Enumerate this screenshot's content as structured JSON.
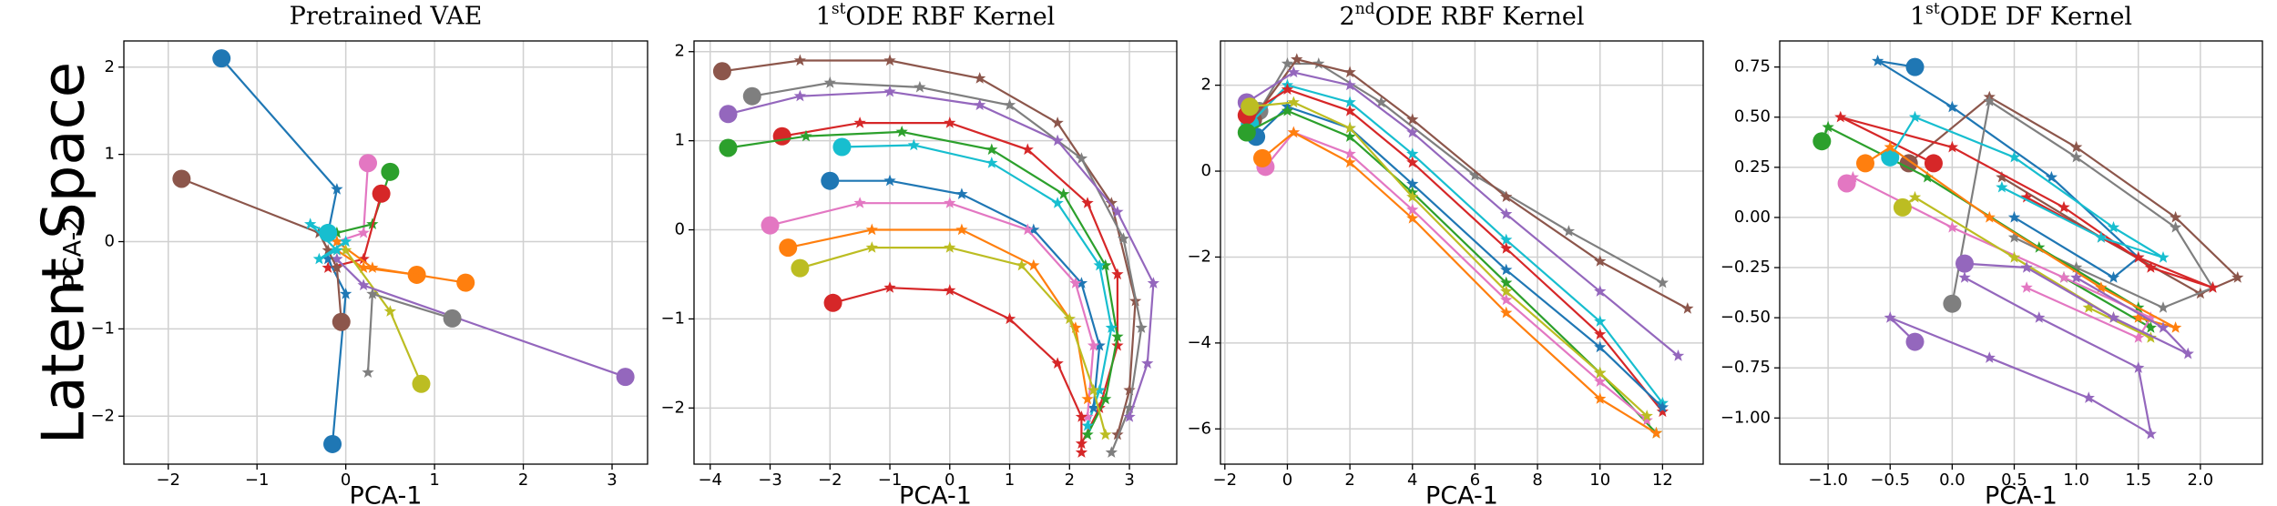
{
  "row_label": "Latent Space",
  "chart_data": [
    {
      "type": "line",
      "title": "Pretrained VAE",
      "xlabel": "PCA-1",
      "ylabel": "PCA-2",
      "grid": true,
      "xlim": [
        -2.5,
        3.4
      ],
      "ylim": [
        -2.55,
        2.3
      ],
      "xticks": [
        {
          "value": -2,
          "label": "−2"
        },
        {
          "value": -1,
          "label": "−1"
        },
        0,
        1,
        2,
        3
      ],
      "yticks": [
        {
          "value": -2,
          "label": "−2"
        },
        {
          "value": -1,
          "label": "−1"
        },
        0,
        1,
        2
      ],
      "series": [
        {
          "color": "#1f77b4",
          "x": [
            -1.4,
            -0.1,
            -0.2
          ],
          "values": [
            2.1,
            0.6,
            0.1
          ]
        },
        {
          "color": "#8c564b",
          "x": [
            -1.85,
            -0.3,
            -0.2
          ],
          "values": [
            0.72,
            0.1,
            -0.1
          ]
        },
        {
          "color": "#e377c2",
          "x": [
            0.25,
            0.2,
            -0.1
          ],
          "values": [
            0.9,
            0.1,
            0
          ]
        },
        {
          "color": "#2ca02c",
          "x": [
            0.5,
            0.3,
            -0.1
          ],
          "values": [
            0.8,
            0.2,
            0.1
          ]
        },
        {
          "color": "#d62728",
          "x": [
            0.4,
            0.2,
            -0.2
          ],
          "values": [
            0.55,
            -0.2,
            -0.3
          ]
        },
        {
          "color": "#ff7f0e",
          "x": [
            0.8,
            0.2,
            -0.1
          ],
          "values": [
            -0.38,
            -0.3,
            -0.1
          ]
        },
        {
          "color": "#ff7f0e",
          "x": [
            1.35,
            0.3,
            -0.1
          ],
          "values": [
            -0.47,
            -0.3,
            0
          ]
        },
        {
          "color": "#bcbd22",
          "x": [
            0.85,
            0.5,
            0
          ],
          "values": [
            -1.63,
            -0.8,
            -0.1
          ]
        },
        {
          "color": "#9467bd",
          "x": [
            3.15,
            0.2,
            -0.1
          ],
          "values": [
            -1.55,
            -0.5,
            -0.2
          ]
        },
        {
          "color": "#1f77b4",
          "x": [
            -0.15,
            0,
            -0.2
          ],
          "values": [
            -2.32,
            -0.6,
            -0.2
          ]
        },
        {
          "color": "#7f7f7f",
          "x": [
            1.2,
            0.3,
            0.25
          ],
          "values": [
            -0.88,
            -0.6,
            -1.5
          ]
        },
        {
          "color": "#8c564b",
          "x": [
            -0.05,
            -0.1,
            -0.3
          ],
          "values": [
            -0.92,
            -0.3,
            0.1
          ]
        },
        {
          "color": "#17becf",
          "x": [
            -0.2,
            -0.4,
            -0.1,
            -0.3,
            0
          ],
          "values": [
            0.1,
            0.2,
            -0.1,
            -0.2,
            0
          ]
        }
      ]
    },
    {
      "type": "line",
      "title": {
        "ordinal": "1",
        "suffix": "st",
        "text": "ODE RBF Kernel"
      },
      "xlabel": "PCA-1",
      "grid": true,
      "xlim": [
        -4.27,
        3.79
      ],
      "ylim": [
        -2.63,
        2.12
      ],
      "xticks": [
        {
          "value": -4,
          "label": "−4"
        },
        {
          "value": -3,
          "label": "−3"
        },
        {
          "value": -2,
          "label": "−2"
        },
        {
          "value": -1,
          "label": "−1"
        },
        0,
        1,
        2,
        3
      ],
      "yticks": [
        {
          "value": -2,
          "label": "−2"
        },
        {
          "value": -1,
          "label": "−1"
        },
        0,
        1,
        2
      ],
      "series": [
        {
          "color": "#8c564b",
          "x": [
            -3.8,
            -2.5,
            -1,
            0.5,
            1.8,
            2.7,
            3.1,
            3.0,
            2.8
          ],
          "values": [
            1.78,
            1.9,
            1.9,
            1.7,
            1.2,
            0.3,
            -0.8,
            -1.8,
            -2.3
          ]
        },
        {
          "color": "#7f7f7f",
          "x": [
            -3.3,
            -2,
            -0.5,
            1,
            2.2,
            2.9,
            3.2,
            3.0,
            2.7
          ],
          "values": [
            1.5,
            1.65,
            1.6,
            1.4,
            0.8,
            -0.1,
            -1.1,
            -2.0,
            -2.5
          ]
        },
        {
          "color": "#9467bd",
          "x": [
            -3.7,
            -2.5,
            -1,
            0.5,
            1.8,
            2.8,
            3.4,
            3.3,
            3.0
          ],
          "values": [
            1.3,
            1.5,
            1.55,
            1.4,
            1.0,
            0.2,
            -0.6,
            -1.5,
            -2.1
          ]
        },
        {
          "color": "#d62728",
          "x": [
            -2.8,
            -1.5,
            0,
            1.3,
            2.3,
            2.8,
            2.8,
            2.5,
            2.2
          ],
          "values": [
            1.05,
            1.2,
            1.2,
            0.9,
            0.3,
            -0.5,
            -1.3,
            -2.0,
            -2.4
          ]
        },
        {
          "color": "#2ca02c",
          "x": [
            -3.7,
            -2.4,
            -0.8,
            0.7,
            1.9,
            2.6,
            2.8,
            2.6,
            2.3
          ],
          "values": [
            0.92,
            1.05,
            1.1,
            0.9,
            0.4,
            -0.4,
            -1.2,
            -1.9,
            -2.3
          ]
        },
        {
          "color": "#17becf",
          "x": [
            -1.8,
            -0.6,
            0.7,
            1.8,
            2.5,
            2.7,
            2.5,
            2.3
          ],
          "values": [
            0.93,
            0.95,
            0.75,
            0.3,
            -0.4,
            -1.1,
            -1.8,
            -2.2
          ]
        },
        {
          "color": "#1f77b4",
          "x": [
            -2,
            -1,
            0.2,
            1.4,
            2.2,
            2.5,
            2.4
          ],
          "values": [
            0.55,
            0.55,
            0.4,
            0.0,
            -0.6,
            -1.3,
            -2.0
          ]
        },
        {
          "color": "#e377c2",
          "x": [
            -3.0,
            -1.5,
            0,
            1.3,
            2.1,
            2.4,
            2.3
          ],
          "values": [
            0.05,
            0.3,
            0.3,
            0.0,
            -0.6,
            -1.3,
            -2.1
          ]
        },
        {
          "color": "#ff7f0e",
          "x": [
            -2.7,
            -1.3,
            0.2,
            1.4,
            2.1,
            2.3
          ],
          "values": [
            -0.2,
            0.0,
            0.0,
            -0.4,
            -1.1,
            -1.9
          ]
        },
        {
          "color": "#bcbd22",
          "x": [
            -2.5,
            -1.3,
            0,
            1.2,
            2.0,
            2.4,
            2.6
          ],
          "values": [
            -0.43,
            -0.2,
            -0.2,
            -0.4,
            -1.0,
            -1.8,
            -2.3
          ]
        },
        {
          "color": "#d62728",
          "x": [
            -1.95,
            -1,
            0,
            1,
            1.8,
            2.2,
            2.2
          ],
          "values": [
            -0.82,
            -0.65,
            -0.68,
            -1.0,
            -1.5,
            -2.1,
            -2.5
          ]
        }
      ]
    },
    {
      "type": "line",
      "title": {
        "ordinal": "2",
        "suffix": "nd",
        "text": "ODE RBF Kernel"
      },
      "xlabel": "PCA-1",
      "grid": true,
      "xlim": [
        -2.14,
        13.3
      ],
      "ylim": [
        -6.82,
        3.03
      ],
      "xticks": [
        {
          "value": -2,
          "label": "−2"
        },
        0,
        2,
        4,
        6,
        8,
        10,
        12
      ],
      "yticks": [
        {
          "value": -6,
          "label": "−6"
        },
        {
          "value": -4,
          "label": "−4"
        },
        {
          "value": -2,
          "label": "−2"
        },
        0,
        2
      ],
      "series": [
        {
          "color": "#7f7f7f",
          "x": [
            -0.9,
            0,
            1,
            3,
            6,
            9,
            12
          ],
          "values": [
            1.4,
            2.5,
            2.5,
            1.6,
            -0.1,
            -1.4,
            -2.6
          ]
        },
        {
          "color": "#8c564b",
          "x": [
            -1.1,
            0.3,
            2,
            4,
            7,
            10,
            12.8
          ],
          "values": [
            1.2,
            2.6,
            2.3,
            1.2,
            -0.6,
            -2.1,
            -3.2
          ]
        },
        {
          "color": "#9467bd",
          "x": [
            -1.3,
            0.2,
            2,
            4,
            7,
            10,
            12.5
          ],
          "values": [
            1.6,
            2.3,
            2,
            0.9,
            -1,
            -2.8,
            -4.3
          ]
        },
        {
          "color": "#17becf",
          "x": [
            -1.2,
            0,
            2,
            4,
            7,
            10,
            12
          ],
          "values": [
            1.1,
            2,
            1.6,
            0.4,
            -1.6,
            -3.5,
            -5.4
          ]
        },
        {
          "color": "#d62728",
          "x": [
            -1.3,
            0,
            2,
            4,
            7,
            10,
            12
          ],
          "values": [
            1.3,
            1.9,
            1.4,
            0.2,
            -1.8,
            -3.8,
            -5.6
          ]
        },
        {
          "color": "#1f77b4",
          "x": [
            -1,
            0,
            2,
            4,
            7,
            10,
            12
          ],
          "values": [
            0.8,
            1.5,
            1,
            -0.3,
            -2.3,
            -4.1,
            -5.5
          ]
        },
        {
          "color": "#2ca02c",
          "x": [
            -1.3,
            0,
            2,
            4,
            7,
            10,
            11.8
          ],
          "values": [
            0.9,
            1.4,
            0.8,
            -0.5,
            -2.6,
            -4.7,
            -6.1
          ]
        },
        {
          "color": "#e377c2",
          "x": [
            -0.7,
            0.2,
            2,
            4,
            7,
            10,
            11.5
          ],
          "values": [
            0.1,
            0.9,
            0.4,
            -0.9,
            -3,
            -4.9,
            -5.8
          ]
        },
        {
          "color": "#ff7f0e",
          "x": [
            -0.8,
            0.2,
            2,
            4,
            7,
            10,
            11.8
          ],
          "values": [
            0.3,
            0.9,
            0.2,
            -1.1,
            -3.3,
            -5.3,
            -6.1
          ]
        },
        {
          "color": "#bcbd22",
          "x": [
            -1.2,
            0.2,
            2,
            4,
            7,
            10,
            11.5
          ],
          "values": [
            1.5,
            1.6,
            1.0,
            -0.6,
            -2.8,
            -4.7,
            -5.7
          ]
        }
      ]
    },
    {
      "type": "line",
      "title": {
        "ordinal": "1",
        "suffix": "st",
        "text": "ODE DF Kernel"
      },
      "xlabel": "PCA-1",
      "grid": true,
      "xlim": [
        -1.39,
        2.5
      ],
      "ylim": [
        -1.23,
        0.88
      ],
      "xticks": [
        {
          "value": -1,
          "label": "−1.0"
        },
        {
          "value": -0.5,
          "label": "−0.5"
        },
        {
          "value": 0,
          "label": "0.0"
        },
        {
          "value": 0.5,
          "label": "0.5"
        },
        {
          "value": 1,
          "label": "1.0"
        },
        {
          "value": 1.5,
          "label": "1.5"
        },
        {
          "value": 2,
          "label": "2.0"
        }
      ],
      "yticks": [
        {
          "value": -1,
          "label": "−1.00"
        },
        {
          "value": -0.75,
          "label": "−0.75"
        },
        {
          "value": -0.5,
          "label": "−0.50"
        },
        {
          "value": -0.25,
          "label": "−0.25"
        },
        {
          "value": 0,
          "label": "0.00"
        },
        {
          "value": 0.25,
          "label": "0.25"
        },
        {
          "value": 0.5,
          "label": "0.50"
        },
        {
          "value": 0.75,
          "label": "0.75"
        }
      ],
      "series": [
        {
          "color": "#1f77b4",
          "x": [
            -0.3,
            -0.6,
            0,
            0.8,
            1.5,
            1.3,
            0.5
          ],
          "values": [
            0.75,
            0.78,
            0.55,
            0.2,
            -0.2,
            -0.3,
            0
          ]
        },
        {
          "color": "#8c564b",
          "x": [
            -0.35,
            0.3,
            1.0,
            1.8,
            2.3,
            2.0,
            1.2,
            0.4
          ],
          "values": [
            0.27,
            0.6,
            0.35,
            0.0,
            -0.3,
            -0.38,
            -0.1,
            0.2
          ]
        },
        {
          "color": "#7f7f7f",
          "x": [
            0.0,
            0.3,
            1.0,
            1.8,
            2.1,
            1.7,
            1.0,
            0.5
          ],
          "values": [
            -0.43,
            0.58,
            0.3,
            -0.05,
            -0.35,
            -0.45,
            -0.25,
            -0.1
          ]
        },
        {
          "color": "#9467bd",
          "x": [
            -0.3,
            -0.5,
            0.3,
            1.1,
            1.6,
            1.5,
            0.7,
            0.1
          ],
          "values": [
            -0.62,
            -0.5,
            -0.7,
            -0.9,
            -1.08,
            -0.75,
            -0.5,
            -0.3
          ]
        },
        {
          "color": "#2ca02c",
          "x": [
            -1.05,
            -1.0,
            -0.2,
            0.7,
            1.5,
            1.6,
            0.9
          ],
          "values": [
            0.38,
            0.45,
            0.2,
            -0.15,
            -0.45,
            -0.55,
            -0.3
          ]
        },
        {
          "color": "#d62728",
          "x": [
            -0.15,
            -0.9,
            0,
            0.9,
            1.6,
            2.1,
            1.5,
            0.6
          ],
          "values": [
            0.27,
            0.5,
            0.35,
            0.05,
            -0.25,
            -0.35,
            -0.2,
            0.1
          ]
        },
        {
          "color": "#17becf",
          "x": [
            -0.5,
            -0.3,
            0.5,
            1.3,
            1.7,
            1.2,
            0.4
          ],
          "values": [
            0.3,
            0.5,
            0.3,
            -0.05,
            -0.2,
            -0.1,
            0.15
          ]
        },
        {
          "color": "#e377c2",
          "x": [
            -0.85,
            -0.8,
            0,
            0.9,
            1.6,
            1.5,
            0.6
          ],
          "values": [
            0.17,
            0.2,
            -0.05,
            -0.3,
            -0.5,
            -0.6,
            -0.35
          ]
        },
        {
          "color": "#bcbd22",
          "x": [
            -0.4,
            -0.3,
            0.5,
            1.3,
            1.6,
            1.1
          ],
          "values": [
            0.05,
            0.1,
            -0.2,
            -0.5,
            -0.6,
            -0.45
          ]
        },
        {
          "color": "#ff7f0e",
          "x": [
            -0.7,
            -0.5,
            0.3,
            1.2,
            1.8,
            1.5
          ],
          "values": [
            0.27,
            0.35,
            0.0,
            -0.35,
            -0.55,
            -0.5
          ]
        },
        {
          "color": "#9467bd",
          "x": [
            0.1,
            0.6,
            1.3,
            1.9,
            1.7,
            1.0
          ],
          "values": [
            -0.23,
            -0.25,
            -0.5,
            -0.68,
            -0.55,
            -0.3
          ]
        }
      ]
    }
  ]
}
